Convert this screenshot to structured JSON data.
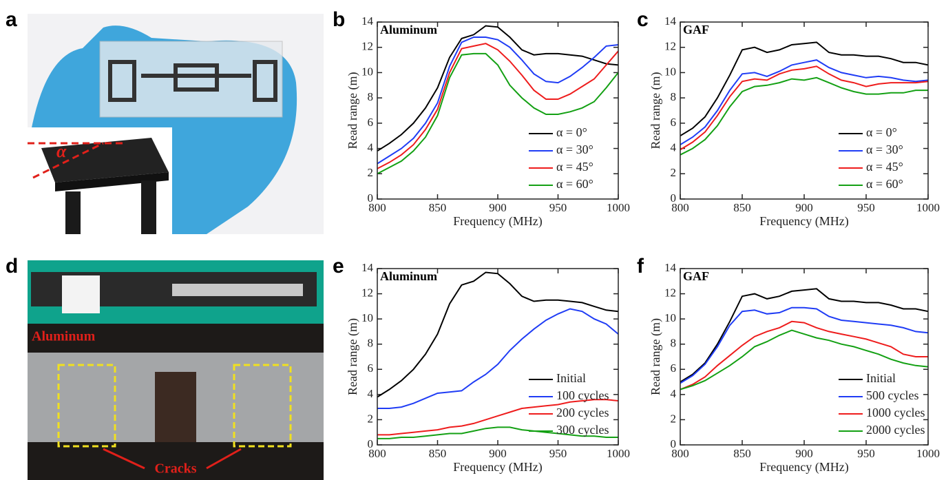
{
  "photo_a": {
    "panel_label": "a",
    "annotation": "α"
  },
  "photo_d": {
    "panel_label": "d",
    "material": "Aluminum",
    "annotation": "Cracks"
  },
  "chart_data": [
    {
      "type": "line",
      "panel_label": "b",
      "title": "Aluminum",
      "x_label": "Frequency (MHz)",
      "y_label": "Read range (m)",
      "x": [
        800,
        810,
        820,
        830,
        840,
        850,
        860,
        870,
        880,
        890,
        900,
        910,
        920,
        930,
        940,
        950,
        960,
        970,
        980,
        990,
        1000
      ],
      "xlim": [
        800,
        1000
      ],
      "xticks": [
        800,
        850,
        900,
        950,
        1000
      ],
      "ylim": [
        0,
        14
      ],
      "yticks": [
        0,
        2,
        4,
        6,
        8,
        10,
        12,
        14
      ],
      "legend": "lower right",
      "series": [
        {
          "name": "α = 0°",
          "color": "#000000",
          "values": [
            3.8,
            4.4,
            5.1,
            6.0,
            7.2,
            8.8,
            11.2,
            12.7,
            13.0,
            13.7,
            13.6,
            12.8,
            11.8,
            11.4,
            11.5,
            11.5,
            11.4,
            11.3,
            11.0,
            10.7,
            10.6
          ]
        },
        {
          "name": "α = 30°",
          "color": "#1f3cf5",
          "values": [
            2.8,
            3.4,
            4.0,
            4.8,
            6.0,
            7.6,
            10.5,
            12.4,
            12.8,
            12.8,
            12.6,
            12.0,
            11.0,
            9.9,
            9.3,
            9.2,
            9.7,
            10.4,
            11.2,
            12.1,
            12.2
          ]
        },
        {
          "name": "α = 45°",
          "color": "#ee1c1c",
          "values": [
            2.4,
            2.9,
            3.5,
            4.3,
            5.5,
            7.1,
            10.0,
            11.9,
            12.1,
            12.3,
            11.8,
            10.9,
            9.8,
            8.6,
            7.9,
            7.9,
            8.3,
            8.9,
            9.5,
            10.6,
            11.7
          ]
        },
        {
          "name": "α = 60°",
          "color": "#13a013",
          "values": [
            2.0,
            2.5,
            3.0,
            3.8,
            4.9,
            6.6,
            9.6,
            11.4,
            11.5,
            11.5,
            10.6,
            9.0,
            8.0,
            7.2,
            6.7,
            6.7,
            6.9,
            7.2,
            7.7,
            8.8,
            10.0
          ]
        }
      ]
    },
    {
      "type": "line",
      "panel_label": "c",
      "title": "GAF",
      "x_label": "Frequency (MHz)",
      "y_label": "Read range (m)",
      "x": [
        800,
        810,
        820,
        830,
        840,
        850,
        860,
        870,
        880,
        890,
        900,
        910,
        920,
        930,
        940,
        950,
        960,
        970,
        980,
        990,
        1000
      ],
      "xlim": [
        800,
        1000
      ],
      "xticks": [
        800,
        850,
        900,
        950,
        1000
      ],
      "ylim": [
        0,
        14
      ],
      "yticks": [
        0,
        2,
        4,
        6,
        8,
        10,
        12,
        14
      ],
      "legend": "lower right",
      "series": [
        {
          "name": "α = 0°",
          "color": "#000000",
          "values": [
            5.0,
            5.6,
            6.5,
            8.0,
            9.8,
            11.8,
            12.0,
            11.6,
            11.8,
            12.2,
            12.3,
            12.4,
            11.6,
            11.4,
            11.4,
            11.3,
            11.3,
            11.1,
            10.8,
            10.8,
            10.6
          ]
        },
        {
          "name": "α = 30°",
          "color": "#1f3cf5",
          "values": [
            4.3,
            4.9,
            5.7,
            7.0,
            8.6,
            9.9,
            10.0,
            9.7,
            10.1,
            10.6,
            10.8,
            11.0,
            10.4,
            10.0,
            9.8,
            9.6,
            9.7,
            9.6,
            9.4,
            9.3,
            9.4
          ]
        },
        {
          "name": "α = 45°",
          "color": "#ee1c1c",
          "values": [
            3.9,
            4.5,
            5.3,
            6.6,
            8.1,
            9.3,
            9.5,
            9.4,
            9.9,
            10.2,
            10.3,
            10.5,
            9.9,
            9.4,
            9.2,
            8.9,
            9.1,
            9.2,
            9.2,
            9.2,
            9.3
          ]
        },
        {
          "name": "α = 60°",
          "color": "#13a013",
          "values": [
            3.5,
            4.0,
            4.7,
            5.8,
            7.3,
            8.5,
            8.9,
            9.0,
            9.2,
            9.5,
            9.4,
            9.6,
            9.2,
            8.8,
            8.5,
            8.3,
            8.3,
            8.4,
            8.4,
            8.6,
            8.6
          ]
        }
      ]
    },
    {
      "type": "line",
      "panel_label": "e",
      "title": "Aluminum",
      "x_label": "Frequency (MHz)",
      "y_label": "Read range (m)",
      "x": [
        800,
        810,
        820,
        830,
        840,
        850,
        860,
        870,
        880,
        890,
        900,
        910,
        920,
        930,
        940,
        950,
        960,
        970,
        980,
        990,
        1000
      ],
      "xlim": [
        800,
        1000
      ],
      "xticks": [
        800,
        850,
        900,
        950,
        1000
      ],
      "ylim": [
        0,
        14
      ],
      "yticks": [
        0,
        2,
        4,
        6,
        8,
        10,
        12,
        14
      ],
      "legend": "lower right",
      "series": [
        {
          "name": "Initial",
          "color": "#000000",
          "values": [
            3.8,
            4.4,
            5.1,
            6.0,
            7.2,
            8.8,
            11.2,
            12.7,
            13.0,
            13.7,
            13.6,
            12.8,
            11.8,
            11.4,
            11.5,
            11.5,
            11.4,
            11.3,
            11.0,
            10.7,
            10.6
          ]
        },
        {
          "name": "100 cycles",
          "color": "#1f3cf5",
          "values": [
            2.9,
            2.9,
            3.0,
            3.3,
            3.7,
            4.1,
            4.2,
            4.3,
            5.0,
            5.6,
            6.4,
            7.5,
            8.4,
            9.2,
            9.9,
            10.4,
            10.8,
            10.6,
            10.0,
            9.6,
            8.8
          ]
        },
        {
          "name": "200 cycles",
          "color": "#ee1c1c",
          "values": [
            0.8,
            0.8,
            0.9,
            1.0,
            1.1,
            1.2,
            1.4,
            1.5,
            1.7,
            2.0,
            2.3,
            2.6,
            2.9,
            3.0,
            3.1,
            3.2,
            3.4,
            3.5,
            3.6,
            3.6,
            3.5
          ]
        },
        {
          "name": "300 cycles",
          "color": "#13a013",
          "values": [
            0.5,
            0.5,
            0.6,
            0.6,
            0.7,
            0.8,
            0.9,
            0.9,
            1.1,
            1.3,
            1.4,
            1.4,
            1.2,
            1.1,
            1.0,
            0.9,
            0.8,
            0.7,
            0.7,
            0.6,
            0.6
          ]
        }
      ]
    },
    {
      "type": "line",
      "panel_label": "f",
      "title": "GAF",
      "x_label": "Frequency (MHz)",
      "y_label": "Read range (m)",
      "x": [
        800,
        810,
        820,
        830,
        840,
        850,
        860,
        870,
        880,
        890,
        900,
        910,
        920,
        930,
        940,
        950,
        960,
        970,
        980,
        990,
        1000
      ],
      "xlim": [
        800,
        1000
      ],
      "xticks": [
        800,
        850,
        900,
        950,
        1000
      ],
      "ylim": [
        0,
        14
      ],
      "yticks": [
        0,
        2,
        4,
        6,
        8,
        10,
        12,
        14
      ],
      "legend": "lower right",
      "series": [
        {
          "name": "Initial",
          "color": "#000000",
          "values": [
            5.0,
            5.6,
            6.5,
            8.0,
            9.8,
            11.8,
            12.0,
            11.6,
            11.8,
            12.2,
            12.3,
            12.4,
            11.6,
            11.4,
            11.4,
            11.3,
            11.3,
            11.1,
            10.8,
            10.8,
            10.6
          ]
        },
        {
          "name": "500 cycles",
          "color": "#1f3cf5",
          "values": [
            4.9,
            5.5,
            6.4,
            7.8,
            9.5,
            10.6,
            10.7,
            10.4,
            10.5,
            10.9,
            10.9,
            10.8,
            10.2,
            9.9,
            9.8,
            9.7,
            9.6,
            9.5,
            9.3,
            9.0,
            8.9
          ]
        },
        {
          "name": "1000 cycles",
          "color": "#ee1c1c",
          "values": [
            4.4,
            4.8,
            5.4,
            6.3,
            7.1,
            7.9,
            8.6,
            9.0,
            9.3,
            9.8,
            9.7,
            9.3,
            9.0,
            8.8,
            8.6,
            8.4,
            8.1,
            7.8,
            7.2,
            7.0,
            7.0
          ]
        },
        {
          "name": "2000 cycles",
          "color": "#13a013",
          "values": [
            4.4,
            4.7,
            5.1,
            5.7,
            6.3,
            7.0,
            7.8,
            8.2,
            8.7,
            9.1,
            8.8,
            8.5,
            8.3,
            8.0,
            7.8,
            7.5,
            7.2,
            6.8,
            6.5,
            6.3,
            6.2
          ]
        }
      ]
    }
  ]
}
